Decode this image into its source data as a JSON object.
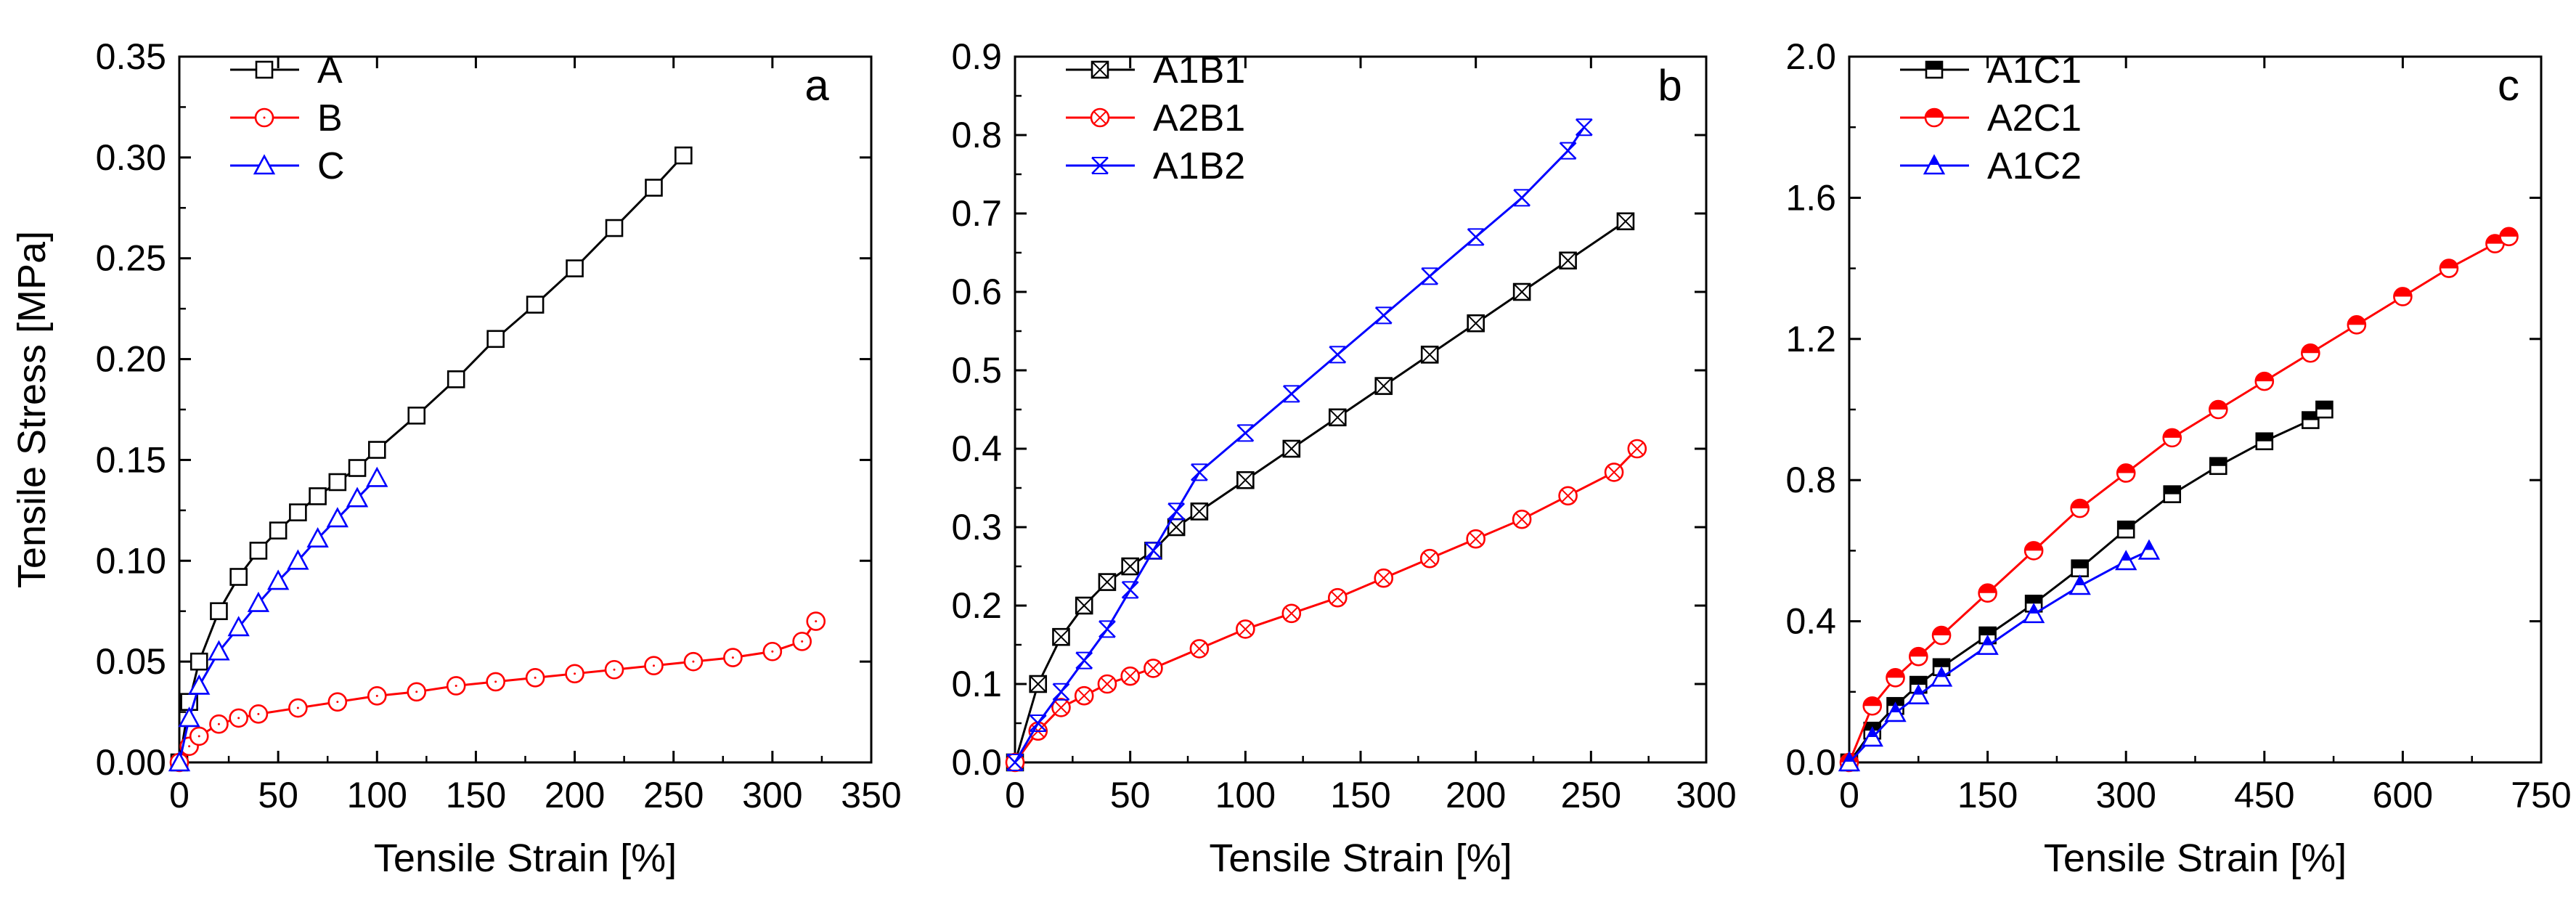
{
  "colors": {
    "A": "#000000",
    "B": "#ff0000",
    "C": "#0000ff"
  },
  "chart_data": [
    {
      "panel": "a",
      "type": "line",
      "xlabel": "Tensile Strain [%]",
      "ylabel": "Tensile Stress [MPa]",
      "xlim": [
        0,
        350
      ],
      "ylim": [
        0,
        0.35
      ],
      "xticks": [
        0,
        50,
        100,
        150,
        200,
        250,
        300,
        350
      ],
      "xtick_labels": [
        "0",
        "50",
        "100",
        "150",
        "200",
        "250",
        "300",
        "350"
      ],
      "yticks": [
        0,
        0.05,
        0.1,
        0.15,
        0.2,
        0.25,
        0.3,
        0.35
      ],
      "ytick_labels": [
        "0.00",
        "0.05",
        "0.10",
        "0.15",
        "0.20",
        "0.25",
        "0.30",
        "0.35"
      ],
      "legend": "top-left",
      "series": [
        {
          "name": "A",
          "color": "#000000",
          "marker": "square-open",
          "x": [
            0,
            5,
            10,
            20,
            30,
            40,
            50,
            60,
            70,
            80,
            90,
            100,
            120,
            140,
            160,
            180,
            200,
            220,
            240,
            255
          ],
          "y": [
            0,
            0.03,
            0.05,
            0.075,
            0.092,
            0.105,
            0.115,
            0.124,
            0.132,
            0.139,
            0.146,
            0.155,
            0.172,
            0.19,
            0.21,
            0.227,
            0.245,
            0.265,
            0.285,
            0.301
          ]
        },
        {
          "name": "B",
          "color": "#ff0000",
          "marker": "circle-open",
          "x": [
            0,
            5,
            10,
            20,
            30,
            40,
            60,
            80,
            100,
            120,
            140,
            160,
            180,
            200,
            220,
            240,
            260,
            280,
            300,
            315,
            322
          ],
          "y": [
            0,
            0.008,
            0.013,
            0.019,
            0.022,
            0.024,
            0.027,
            0.03,
            0.033,
            0.035,
            0.038,
            0.04,
            0.042,
            0.044,
            0.046,
            0.048,
            0.05,
            0.052,
            0.055,
            0.06,
            0.07
          ]
        },
        {
          "name": "C",
          "color": "#0000ff",
          "marker": "triangle-open",
          "x": [
            0,
            5,
            10,
            20,
            30,
            40,
            50,
            60,
            70,
            80,
            90,
            100
          ],
          "y": [
            0,
            0.022,
            0.038,
            0.055,
            0.067,
            0.079,
            0.09,
            0.1,
            0.111,
            0.121,
            0.131,
            0.141
          ]
        }
      ]
    },
    {
      "panel": "b",
      "type": "line",
      "xlabel": "Tensile Strain [%]",
      "ylabel": "",
      "xlim": [
        0,
        300
      ],
      "ylim": [
        0,
        0.9
      ],
      "xticks": [
        0,
        50,
        100,
        150,
        200,
        250,
        300
      ],
      "xtick_labels": [
        "0",
        "50",
        "100",
        "150",
        "200",
        "250",
        "300"
      ],
      "yticks": [
        0,
        0.1,
        0.2,
        0.3,
        0.4,
        0.5,
        0.6,
        0.7,
        0.8,
        0.9
      ],
      "ytick_labels": [
        "0.0",
        "0.1",
        "0.2",
        "0.3",
        "0.4",
        "0.5",
        "0.6",
        "0.7",
        "0.8",
        "0.9"
      ],
      "legend": "top-left",
      "series": [
        {
          "name": "A1B1",
          "color": "#000000",
          "marker": "square-x",
          "x": [
            0,
            10,
            20,
            30,
            40,
            50,
            60,
            70,
            80,
            100,
            120,
            140,
            160,
            180,
            200,
            220,
            240,
            265
          ],
          "y": [
            0,
            0.1,
            0.16,
            0.2,
            0.23,
            0.25,
            0.27,
            0.3,
            0.32,
            0.36,
            0.4,
            0.44,
            0.48,
            0.52,
            0.56,
            0.6,
            0.64,
            0.69
          ]
        },
        {
          "name": "A2B1",
          "color": "#ff0000",
          "marker": "circle-x",
          "x": [
            0,
            10,
            20,
            30,
            40,
            50,
            60,
            80,
            100,
            120,
            140,
            160,
            180,
            200,
            220,
            240,
            260,
            270
          ],
          "y": [
            0,
            0.04,
            0.07,
            0.085,
            0.1,
            0.11,
            0.12,
            0.145,
            0.17,
            0.19,
            0.21,
            0.235,
            0.26,
            0.285,
            0.31,
            0.34,
            0.37,
            0.4
          ]
        },
        {
          "name": "A1B2",
          "color": "#0000ff",
          "marker": "cross-star",
          "x": [
            0,
            10,
            20,
            30,
            40,
            50,
            60,
            70,
            80,
            100,
            120,
            140,
            160,
            180,
            200,
            220,
            240,
            247
          ],
          "y": [
            0,
            0.05,
            0.09,
            0.13,
            0.17,
            0.22,
            0.27,
            0.32,
            0.37,
            0.42,
            0.47,
            0.52,
            0.57,
            0.62,
            0.67,
            0.72,
            0.78,
            0.81
          ]
        }
      ]
    },
    {
      "panel": "c",
      "type": "line",
      "xlabel": "Tensile Strain [%]",
      "ylabel": "",
      "xlim": [
        0,
        750
      ],
      "ylim": [
        0,
        2.0
      ],
      "xticks": [
        0,
        150,
        300,
        450,
        600,
        750
      ],
      "xtick_labels": [
        "0",
        "150",
        "300",
        "450",
        "600",
        "750"
      ],
      "yticks": [
        0,
        0.4,
        0.8,
        1.2,
        1.6,
        2.0
      ],
      "ytick_labels": [
        "0.0",
        "0.4",
        "0.8",
        "1.2",
        "1.6",
        "2.0"
      ],
      "legend": "top-left",
      "series": [
        {
          "name": "A1C1",
          "color": "#000000",
          "marker": "square-half",
          "x": [
            0,
            25,
            50,
            75,
            100,
            150,
            200,
            250,
            300,
            350,
            400,
            450,
            500,
            515
          ],
          "y": [
            0,
            0.09,
            0.16,
            0.22,
            0.27,
            0.36,
            0.45,
            0.55,
            0.66,
            0.76,
            0.84,
            0.91,
            0.97,
            1.0
          ]
        },
        {
          "name": "A2C1",
          "color": "#ff0000",
          "marker": "circle-half",
          "x": [
            0,
            25,
            50,
            75,
            100,
            150,
            200,
            250,
            300,
            350,
            400,
            450,
            500,
            550,
            600,
            650,
            700,
            715
          ],
          "y": [
            0,
            0.16,
            0.24,
            0.3,
            0.36,
            0.48,
            0.6,
            0.72,
            0.82,
            0.92,
            1.0,
            1.08,
            1.16,
            1.24,
            1.32,
            1.4,
            1.47,
            1.49
          ]
        },
        {
          "name": "A1C2",
          "color": "#0000ff",
          "marker": "triangle-half",
          "x": [
            0,
            25,
            50,
            75,
            100,
            150,
            200,
            250,
            300,
            325
          ],
          "y": [
            0,
            0.07,
            0.14,
            0.19,
            0.24,
            0.33,
            0.42,
            0.5,
            0.57,
            0.6
          ]
        }
      ]
    }
  ]
}
